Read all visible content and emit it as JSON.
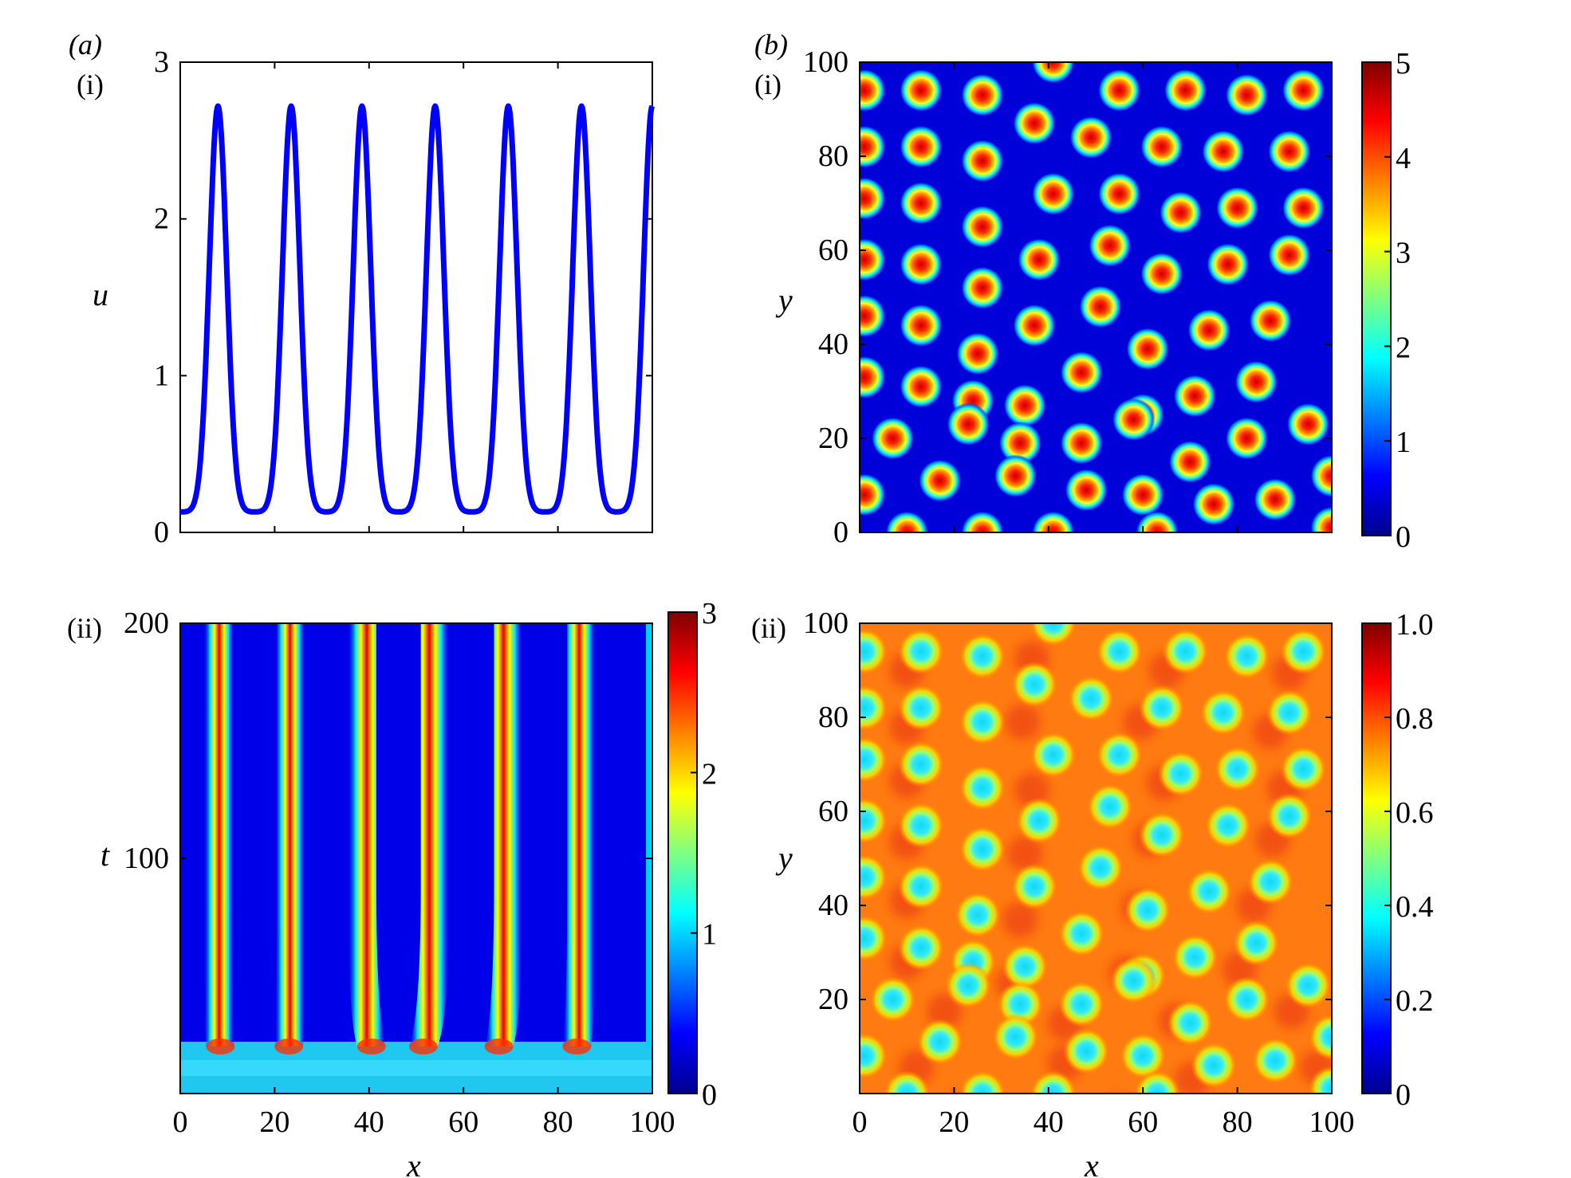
{
  "panel_labels": {
    "a": "(a)",
    "a_i": "(i)",
    "a_ii": "(ii)",
    "b": "(b)",
    "b_i": "(i)",
    "b_ii": "(ii)"
  },
  "colormap": [
    "#00008f",
    "#0000ff",
    "#0080ff",
    "#00ffff",
    "#80ff80",
    "#ffff00",
    "#ff8000",
    "#ff0000",
    "#800000"
  ],
  "chart_data": [
    {
      "id": "a-i",
      "type": "line",
      "title": "",
      "xlabel": "",
      "ylabel": "u",
      "xlim": [
        0,
        100
      ],
      "ylim": [
        0,
        3
      ],
      "yticks": [
        "0",
        "1",
        "2",
        "3"
      ],
      "xticks": [],
      "line_color": "#0000ff",
      "peaks_x": [
        8,
        23.5,
        38.5,
        54,
        69.5,
        85,
        100
      ],
      "peak_value": 2.72,
      "trough_value": 0.13
    },
    {
      "id": "a-ii",
      "type": "heatmap",
      "xlabel": "x",
      "ylabel": "t",
      "xlim": [
        0,
        100
      ],
      "ylim": [
        0,
        200
      ],
      "xticks": [
        "0",
        "20",
        "40",
        "60",
        "80",
        "100"
      ],
      "yticks": [
        "100",
        "200"
      ],
      "colorbar": {
        "min": 0,
        "max": 3,
        "ticks": [
          "0",
          "1",
          "2",
          "3"
        ]
      },
      "stripe_x_final": [
        8,
        23.5,
        38.5,
        54,
        69.5,
        85
      ],
      "stripe_x_initial": [
        8.5,
        23,
        40.5,
        51.5,
        67.5,
        84
      ],
      "transient_end_t": 20
    },
    {
      "id": "b-i",
      "type": "heatmap",
      "xlabel": "",
      "ylabel": "y",
      "xlim": [
        0,
        100
      ],
      "ylim": [
        0,
        100
      ],
      "yticks": [
        "0",
        "20",
        "40",
        "60",
        "80",
        "100"
      ],
      "xticks": [],
      "colorbar": {
        "min": 0,
        "max": 5,
        "ticks": [
          "0",
          "1",
          "2",
          "3",
          "4",
          "5"
        ]
      },
      "spot_peak": 4.6,
      "background": 0.2,
      "spots": [
        [
          1,
          94
        ],
        [
          13,
          94
        ],
        [
          26,
          93
        ],
        [
          41,
          100
        ],
        [
          55,
          94
        ],
        [
          69,
          94
        ],
        [
          82,
          93
        ],
        [
          94,
          94
        ],
        [
          1,
          82
        ],
        [
          13,
          82
        ],
        [
          26,
          79
        ],
        [
          37,
          87
        ],
        [
          49,
          84
        ],
        [
          64,
          82
        ],
        [
          77,
          81
        ],
        [
          91,
          81
        ],
        [
          1,
          71
        ],
        [
          13,
          70
        ],
        [
          26,
          65
        ],
        [
          41,
          72
        ],
        [
          55,
          72
        ],
        [
          68,
          68
        ],
        [
          80,
          69
        ],
        [
          94,
          69
        ],
        [
          1,
          58
        ],
        [
          13,
          57
        ],
        [
          26,
          52
        ],
        [
          38,
          58
        ],
        [
          53,
          61
        ],
        [
          64,
          55
        ],
        [
          78,
          57
        ],
        [
          91,
          59
        ],
        [
          1,
          46
        ],
        [
          13,
          44
        ],
        [
          25,
          38
        ],
        [
          37,
          44
        ],
        [
          51,
          48
        ],
        [
          61,
          39
        ],
        [
          74,
          43
        ],
        [
          87,
          45
        ],
        [
          1,
          33
        ],
        [
          13,
          31
        ],
        [
          24,
          28
        ],
        [
          35,
          27
        ],
        [
          47,
          34
        ],
        [
          60,
          25
        ],
        [
          71,
          29
        ],
        [
          84,
          32
        ],
        [
          7,
          20
        ],
        [
          23,
          23
        ],
        [
          34,
          19
        ],
        [
          47,
          19
        ],
        [
          58,
          24
        ],
        [
          70,
          15
        ],
        [
          82,
          20
        ],
        [
          95,
          23
        ],
        [
          1,
          8
        ],
        [
          17,
          11
        ],
        [
          33,
          12
        ],
        [
          48,
          9
        ],
        [
          60,
          8
        ],
        [
          75,
          6
        ],
        [
          88,
          7
        ],
        [
          100,
          12
        ],
        [
          10,
          0
        ],
        [
          26,
          0
        ],
        [
          41,
          0
        ],
        [
          63,
          0
        ],
        [
          100,
          1
        ]
      ]
    },
    {
      "id": "b-ii",
      "type": "heatmap",
      "xlabel": "x",
      "ylabel": "y",
      "xlim": [
        0,
        100
      ],
      "ylim": [
        0,
        100
      ],
      "xticks": [
        "0",
        "20",
        "40",
        "60",
        "80",
        "100"
      ],
      "yticks": [
        "20",
        "40",
        "60",
        "80",
        "100"
      ],
      "colorbar": {
        "min": 0,
        "max": 1.0,
        "ticks": [
          "0",
          "0.2",
          "0.4",
          "0.6",
          "0.8",
          "1.0"
        ]
      },
      "background": 0.72,
      "spot_value": 0.3
    }
  ]
}
